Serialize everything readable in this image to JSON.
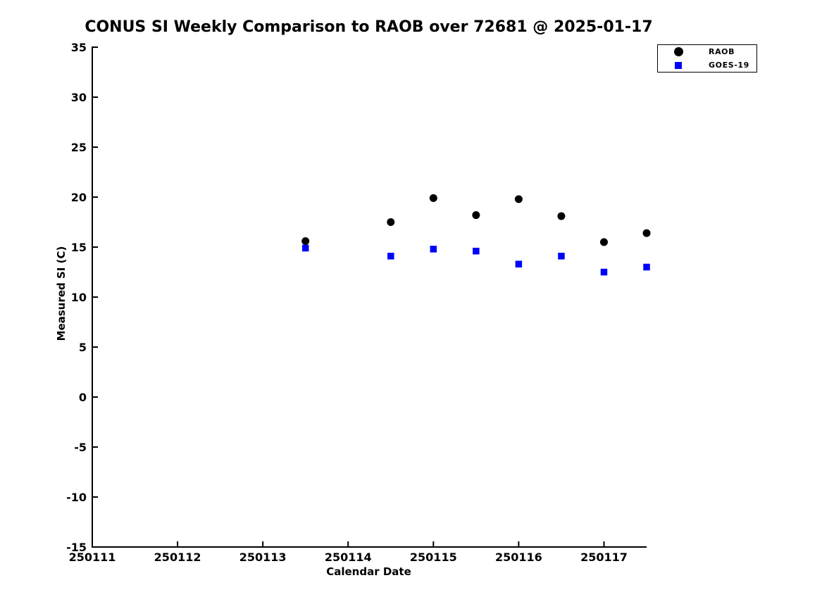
{
  "title": "CONUS SI Weekly Comparison to RAOB over 72681 @ 2025-01-17",
  "chart_data": {
    "type": "scatter",
    "title": "CONUS SI Weekly Comparison to RAOB over 72681 @ 2025-01-17",
    "xlabel": "Calendar Date",
    "ylabel": "Measured SI (C)",
    "xlim": [
      250111,
      250117.5
    ],
    "ylim": [
      -15,
      35
    ],
    "x_ticks": [
      250111,
      250112,
      250113,
      250114,
      250115,
      250116,
      250117
    ],
    "y_ticks": [
      -15,
      -10,
      -5,
      0,
      5,
      10,
      15,
      20,
      25,
      30,
      35
    ],
    "grid": false,
    "legend_position": "top-right",
    "x": [
      250113.5,
      250114.5,
      250115.0,
      250115.5,
      250116.0,
      250116.5,
      250117.0,
      250117.5
    ],
    "series": [
      {
        "name": "RAOB",
        "marker": "circle",
        "color": "#000000",
        "values": [
          15.6,
          17.5,
          19.9,
          18.2,
          19.8,
          18.1,
          15.5,
          16.4
        ]
      },
      {
        "name": "GOES-19",
        "marker": "square",
        "color": "#0000ff",
        "values": [
          14.9,
          14.1,
          14.8,
          14.6,
          13.3,
          14.1,
          12.5,
          13.0
        ]
      }
    ]
  }
}
